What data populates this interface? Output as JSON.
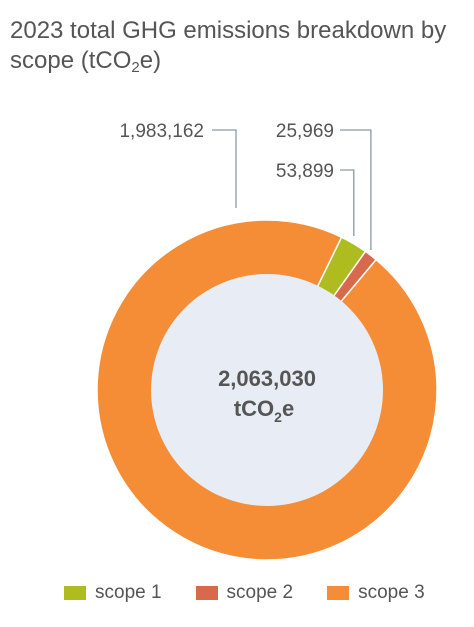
{
  "title": {
    "main": "2023 total GHG emissions breakdown by scope (tCO",
    "sub": "2",
    "end": "e)"
  },
  "chart_data": {
    "type": "pie",
    "variant": "donut",
    "title": "2023 total GHG emissions breakdown by scope (tCO2e)",
    "slices": [
      {
        "name": "scope 1",
        "label": "53,899",
        "value": 53899,
        "color": "#aebc1f"
      },
      {
        "name": "scope 2",
        "label": "25,969",
        "value": 25969,
        "color": "#d9694c"
      },
      {
        "name": "scope 3",
        "label": "1,983,162",
        "value": 1983162,
        "color": "#f48d35"
      }
    ],
    "center": {
      "value": "2,063,030",
      "unit_main": "tCO",
      "unit_sub": "2",
      "unit_end": "e"
    },
    "center_fill": "#e8ecf4",
    "legend_position": "bottom"
  }
}
